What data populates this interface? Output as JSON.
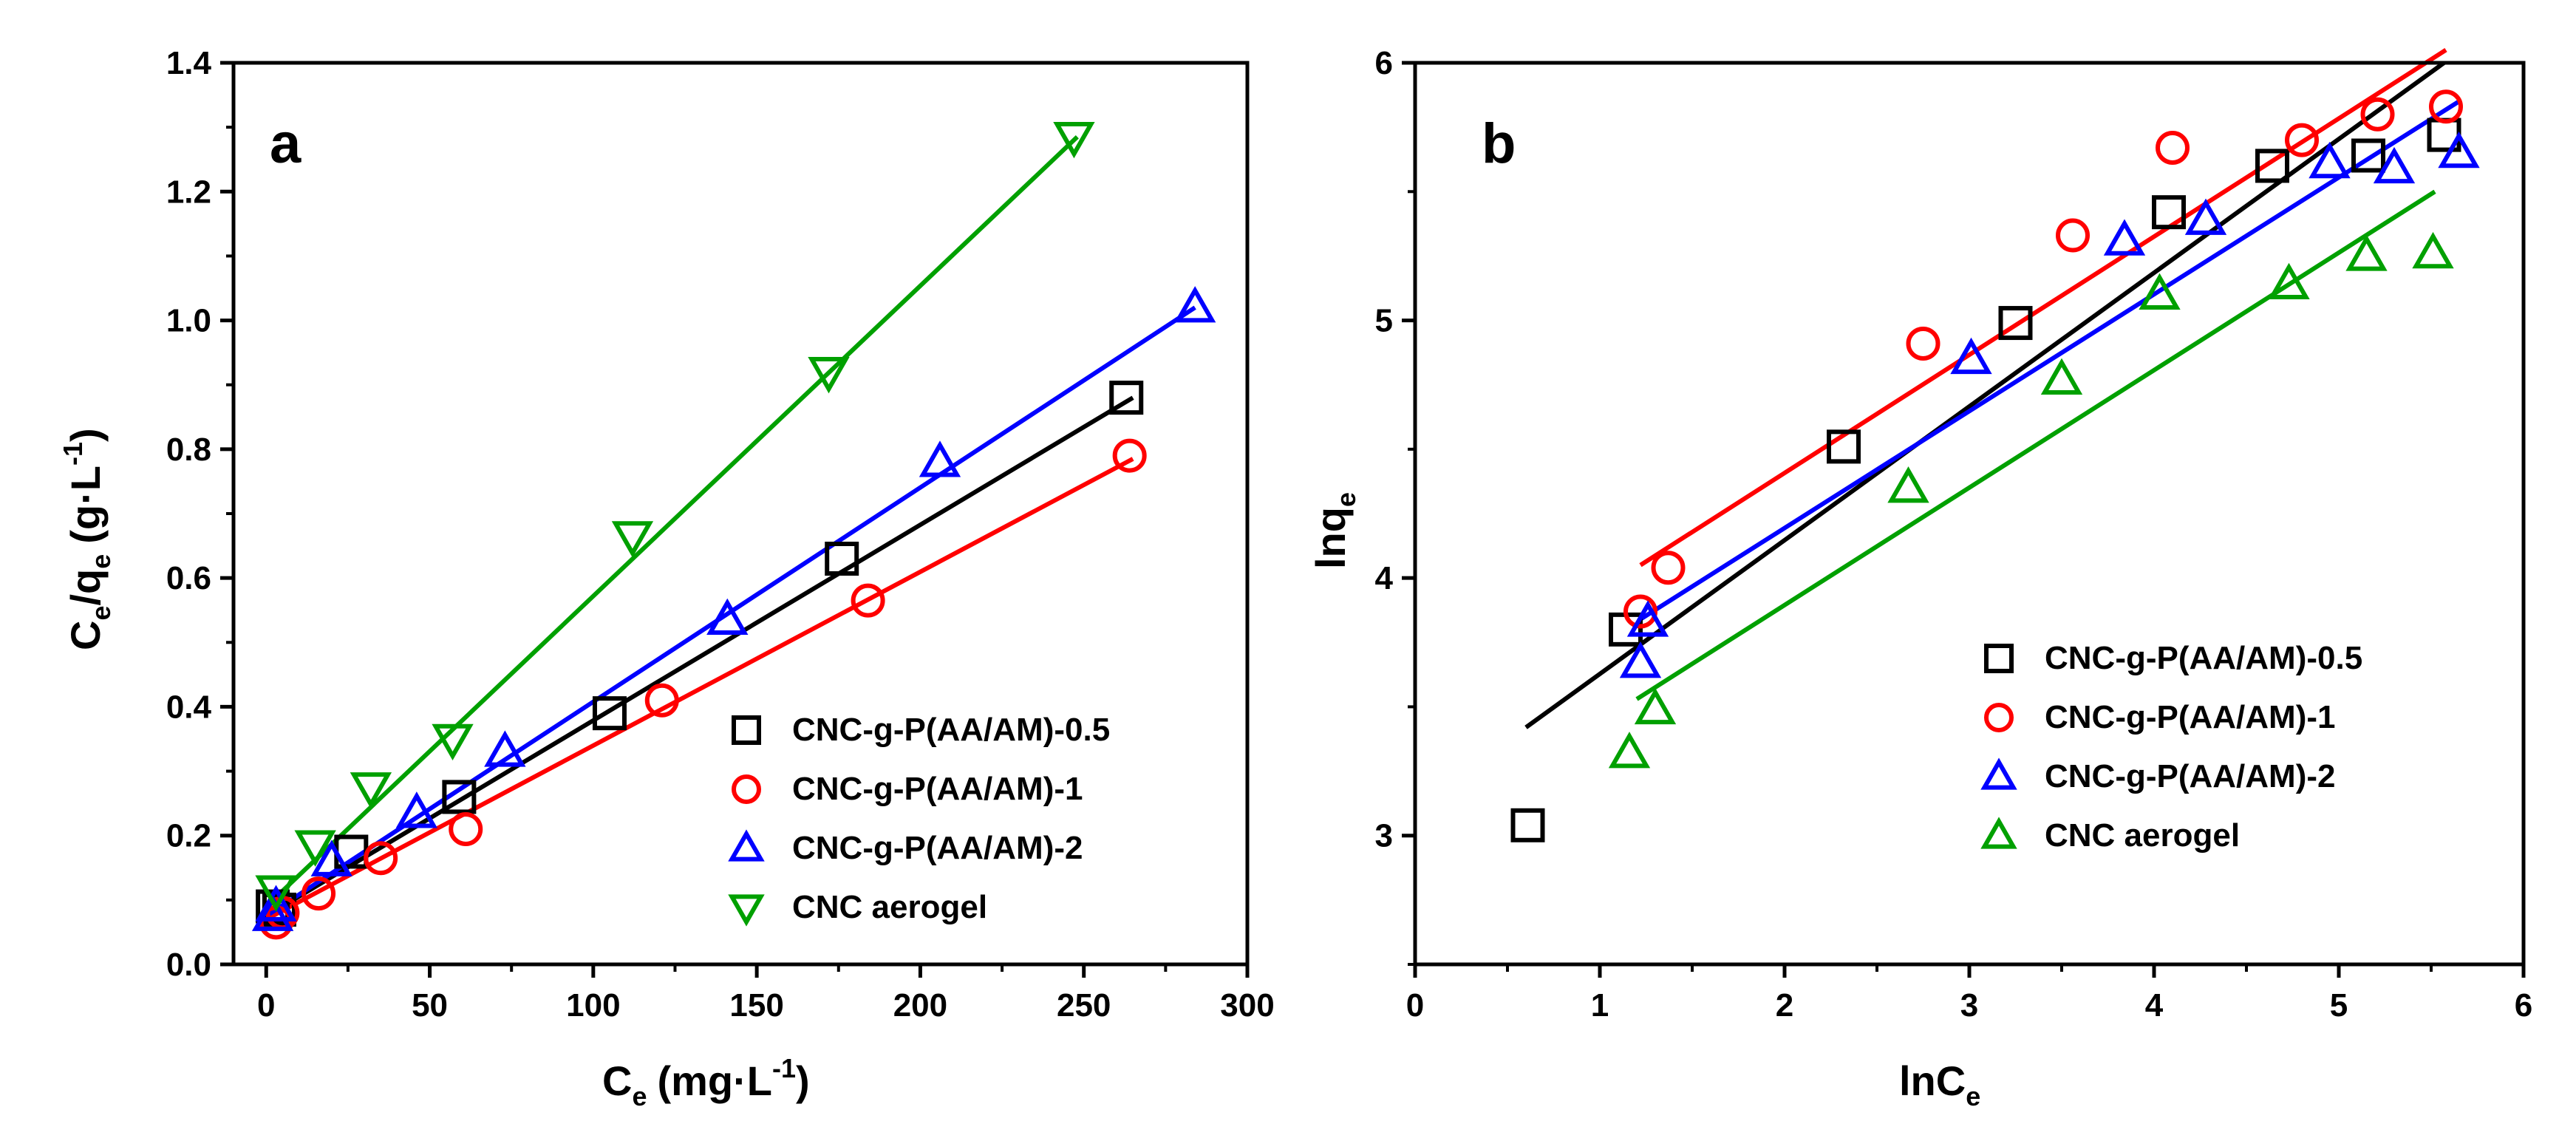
{
  "chart_data": [
    {
      "type": "scatter",
      "panel_label": "a",
      "xlabel": {
        "main": "C",
        "sub": "e",
        "units": "(mg·L",
        "sup": "-1",
        "close": ")"
      },
      "ylabel": {
        "main1": "C",
        "sub1": "e",
        "slash": "/q",
        "sub2": "e",
        "units": "(g·L",
        "sup": "-1",
        "close": ")"
      },
      "xlim": [
        -10,
        300
      ],
      "ylim": [
        0.0,
        1.4
      ],
      "x_ticks": [
        "0",
        "50",
        "100",
        "150",
        "200",
        "250",
        "300"
      ],
      "y_ticks": [
        "0.0",
        "0.2",
        "0.4",
        "0.6",
        "0.8",
        "1.0",
        "1.2",
        "1.4"
      ],
      "legend_position": "lower-right",
      "series": [
        {
          "name": "CNC-g-P(AA/AM)-0.5",
          "marker": "square",
          "color": "#000000",
          "points": [
            [
              2,
              0.09
            ],
            [
              4,
              0.085
            ],
            [
              26,
              0.175
            ],
            [
              59,
              0.26
            ],
            [
              105,
              0.39
            ],
            [
              176,
              0.63
            ],
            [
              263,
              0.88
            ]
          ],
          "fit": [
            [
              0,
              0.075
            ],
            [
              265,
              0.88
            ]
          ]
        },
        {
          "name": "CNC-g-P(AA/AM)-1",
          "marker": "circle",
          "color": "#ff0000",
          "points": [
            [
              3,
              0.065
            ],
            [
              5,
              0.08
            ],
            [
              16,
              0.11
            ],
            [
              35,
              0.165
            ],
            [
              61,
              0.21
            ],
            [
              121,
              0.41
            ],
            [
              184,
              0.565
            ],
            [
              264,
              0.79
            ]
          ],
          "fit": [
            [
              0,
              0.07
            ],
            [
              265,
              0.785
            ]
          ]
        },
        {
          "name": "CNC-g-P(AA/AM)-2",
          "marker": "triangle-up",
          "color": "#0000ff",
          "points": [
            [
              2,
              0.075
            ],
            [
              3,
              0.09
            ],
            [
              20,
              0.16
            ],
            [
              46,
              0.235
            ],
            [
              73,
              0.33
            ],
            [
              141,
              0.535
            ],
            [
              206,
              0.78
            ],
            [
              284,
              1.02
            ]
          ],
          "fit": [
            [
              0,
              0.075
            ],
            [
              284,
              1.02
            ]
          ]
        },
        {
          "name": "CNC aerogel",
          "marker": "triangle-down",
          "color": "#00a000",
          "points": [
            [
              3,
              0.115
            ],
            [
              15,
              0.185
            ],
            [
              32,
              0.275
            ],
            [
              57,
              0.35
            ],
            [
              112,
              0.665
            ],
            [
              172,
              0.92
            ],
            [
              247,
              1.285
            ]
          ],
          "fit": [
            [
              0,
              0.09
            ],
            [
              248,
              1.285
            ]
          ]
        }
      ]
    },
    {
      "type": "scatter",
      "panel_label": "b",
      "xlabel": {
        "main": "lnC",
        "sub": "e"
      },
      "ylabel": {
        "main": "lnq",
        "sub": "e"
      },
      "xlim": [
        0,
        6
      ],
      "ylim": [
        2.5,
        6.0
      ],
      "x_ticks": [
        "0",
        "1",
        "2",
        "3",
        "4",
        "5",
        "6"
      ],
      "y_ticks": [
        "3",
        "4",
        "5",
        "6"
      ],
      "legend_position": "lower-right",
      "series": [
        {
          "name": "CNC-g-P(AA/AM)-0.5",
          "marker": "square",
          "color": "#000000",
          "points": [
            [
              0.61,
              3.04
            ],
            [
              1.14,
              3.8
            ],
            [
              2.32,
              4.51
            ],
            [
              3.25,
              4.99
            ],
            [
              4.08,
              5.42
            ],
            [
              4.64,
              5.6
            ],
            [
              5.16,
              5.64
            ],
            [
              5.57,
              5.72
            ]
          ],
          "fit": [
            [
              0.6,
              3.42
            ],
            [
              5.57,
              6.0
            ]
          ]
        },
        {
          "name": "CNC-g-P(AA/AM)-1",
          "marker": "circle",
          "color": "#ff0000",
          "points": [
            [
              1.22,
              3.87
            ],
            [
              1.37,
              4.04
            ],
            [
              2.75,
              4.91
            ],
            [
              3.56,
              5.33
            ],
            [
              4.1,
              5.67
            ],
            [
              4.8,
              5.7
            ],
            [
              5.21,
              5.8
            ],
            [
              5.58,
              5.83
            ]
          ],
          "fit": [
            [
              1.22,
              4.05
            ],
            [
              5.58,
              6.05
            ]
          ]
        },
        {
          "name": "CNC-g-P(AA/AM)-2",
          "marker": "triangle-up",
          "color": "#0000ff",
          "points": [
            [
              1.22,
              3.67
            ],
            [
              1.26,
              3.83
            ],
            [
              3.01,
              4.85
            ],
            [
              3.84,
              5.31
            ],
            [
              4.28,
              5.39
            ],
            [
              4.95,
              5.61
            ],
            [
              5.3,
              5.59
            ],
            [
              5.65,
              5.65
            ]
          ],
          "fit": [
            [
              1.22,
              3.84
            ],
            [
              5.65,
              5.85
            ]
          ]
        },
        {
          "name": "CNC aerogel",
          "marker": "triangle-up",
          "color": "#00a000",
          "points": [
            [
              1.16,
              3.32
            ],
            [
              1.3,
              3.49
            ],
            [
              2.67,
              4.35
            ],
            [
              3.5,
              4.77
            ],
            [
              4.03,
              5.1
            ],
            [
              4.73,
              5.14
            ],
            [
              5.15,
              5.25
            ],
            [
              5.51,
              5.26
            ]
          ],
          "fit": [
            [
              1.2,
              3.53
            ],
            [
              5.52,
              5.5
            ]
          ]
        }
      ]
    }
  ]
}
